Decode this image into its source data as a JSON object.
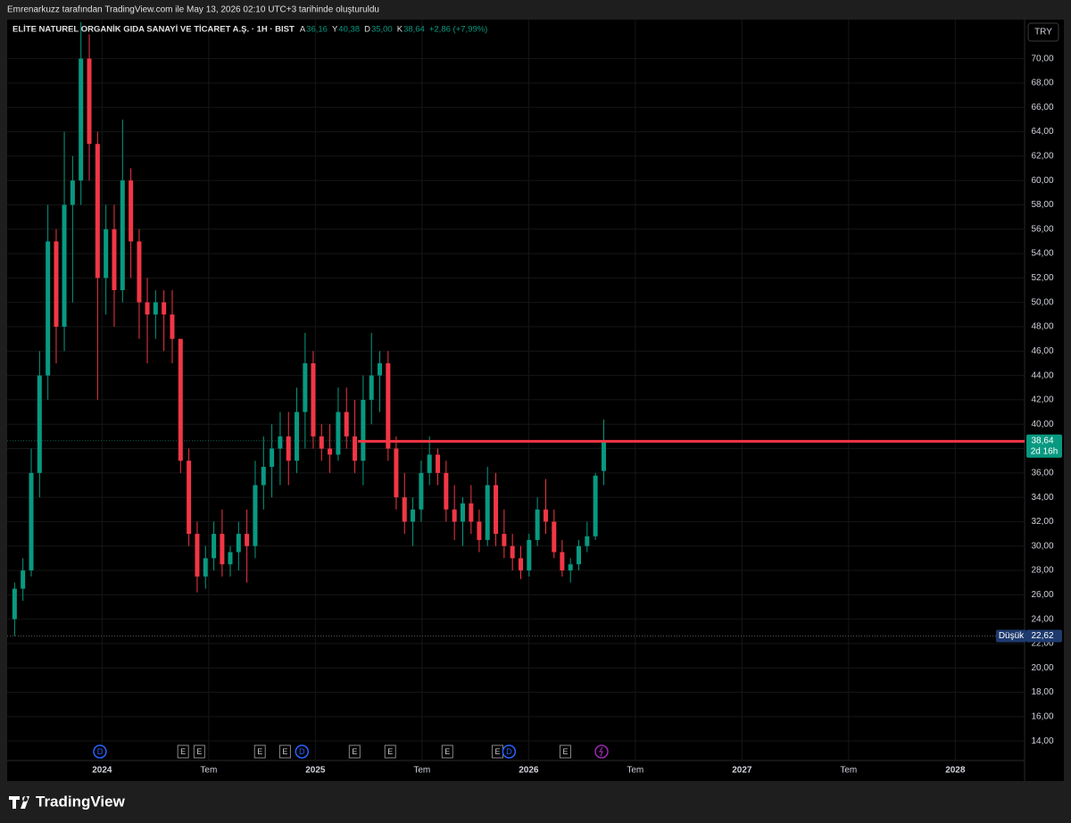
{
  "chart_data": {
    "type": "candlestick",
    "caption": "Emrenarkuzz tarafından TradingView.com ile May 13, 2026 02:10 UTC+3 tarihinde oluşturuldu",
    "title": "ELİTE NATUREL ORGANİK GIDA SANAYİ VE TİCARET A.Ş. · 1H · BIST",
    "legend": [
      {
        "key": "A",
        "text": "36,16"
      },
      {
        "key": "Y",
        "text": "40,38"
      },
      {
        "key": "D",
        "text": "35,00"
      },
      {
        "key": "K",
        "text": "38,64"
      }
    ],
    "change": "+2,86 (+7,99%)",
    "currency": "TRY",
    "brand": "TradingView",
    "up_color": "#089981",
    "down_color": "#f23645",
    "x": [
      2023.59,
      2023.629,
      2023.668,
      2023.707,
      2023.746,
      2023.785,
      2023.823,
      2023.862,
      2023.901,
      2023.94,
      2023.979,
      2024.018,
      2024.057,
      2024.096,
      2024.135,
      2024.174,
      2024.212,
      2024.251,
      2024.29,
      2024.329,
      2024.368,
      2024.407,
      2024.446,
      2024.485,
      2024.524,
      2024.563,
      2024.601,
      2024.64,
      2024.679,
      2024.718,
      2024.757,
      2024.796,
      2024.835,
      2024.874,
      2024.913,
      2024.952,
      2024.99,
      2025.029,
      2025.068,
      2025.107,
      2025.146,
      2025.185,
      2025.224,
      2025.263,
      2025.302,
      2025.341,
      2025.379,
      2025.418,
      2025.457,
      2025.496,
      2025.535,
      2025.574,
      2025.613,
      2025.652,
      2025.691,
      2025.73,
      2025.768,
      2025.807,
      2025.846,
      2025.885,
      2025.924,
      2025.963,
      2026.002,
      2026.041,
      2026.08,
      2026.119,
      2026.157,
      2026.196,
      2026.235,
      2026.274,
      2026.313,
      2026.352
    ],
    "open": [
      24,
      26.5,
      28,
      36,
      44,
      55,
      48,
      58,
      60,
      70,
      63,
      52,
      56,
      51,
      60,
      55,
      50,
      49,
      50,
      49,
      47,
      37,
      31,
      27.5,
      29,
      31,
      28.5,
      29.5,
      31,
      30,
      35,
      36.5,
      38,
      39,
      37,
      41,
      45,
      39,
      38,
      37.5,
      41,
      39,
      37,
      42,
      44,
      45,
      38,
      34,
      32,
      33,
      36,
      37.5,
      36,
      33,
      32,
      33.5,
      32,
      30.5,
      35,
      31,
      30,
      29,
      28,
      30.5,
      33,
      32,
      29.5,
      28,
      28.5,
      30,
      30.8,
      36.16
    ],
    "high": [
      27,
      29,
      38,
      46,
      58,
      56,
      64,
      62,
      73,
      72,
      64,
      58,
      58,
      65,
      61,
      56,
      52,
      51,
      51,
      51,
      47,
      38,
      32,
      30,
      32,
      33,
      30,
      32,
      33,
      37,
      39,
      40,
      41,
      41,
      43,
      47.5,
      46,
      40,
      40,
      43,
      43,
      42,
      44,
      47.5,
      46,
      46,
      39,
      36,
      34,
      37,
      39,
      38,
      37,
      35,
      34,
      35,
      33,
      36.5,
      36,
      33,
      31,
      30,
      31,
      34,
      35.5,
      33,
      30.5,
      29,
      30.5,
      32,
      36,
      40.38
    ],
    "low": [
      22.62,
      25.5,
      27.5,
      34,
      42,
      45,
      46,
      50,
      58,
      60,
      42,
      49,
      48,
      50,
      52,
      47,
      45,
      47,
      46,
      45,
      36,
      30,
      26.2,
      26.5,
      28,
      27.5,
      27.5,
      28,
      27,
      29,
      33,
      34,
      35,
      35,
      36,
      38,
      38,
      37,
      36,
      37,
      38,
      36,
      35,
      40,
      41,
      37,
      33,
      31,
      30,
      32,
      35,
      35,
      32,
      30.5,
      30,
      31,
      29.5,
      30,
      30,
      29,
      28,
      27.3,
      27.5,
      30,
      31,
      29,
      27.5,
      27,
      28,
      29.5,
      30.5,
      35
    ],
    "close": [
      26.5,
      28,
      36,
      44,
      55,
      48,
      58,
      60,
      70,
      63,
      52,
      56,
      51,
      60,
      55,
      50,
      49,
      50,
      49,
      47,
      37,
      31,
      27.5,
      29,
      31,
      28.5,
      29.5,
      31,
      30,
      35,
      36.5,
      38,
      39,
      37,
      41,
      45,
      39,
      38,
      37.5,
      41,
      39,
      37,
      42,
      44,
      45,
      38,
      34,
      32,
      33,
      36,
      37.5,
      36,
      33,
      32,
      33.5,
      32,
      30.5,
      35,
      31,
      30,
      29,
      28,
      30.5,
      33,
      32,
      29.5,
      28,
      28.5,
      30,
      30.8,
      35.78,
      38.64
    ],
    "last_price_label": "38,64",
    "countdown": "2d 16h",
    "low_marker": {
      "label": "Düşük",
      "value": 22.62,
      "value_label": "22,62"
    },
    "hline": {
      "value": 38.6,
      "x_start": 2025.2,
      "color": "#f23645"
    },
    "events": [
      {
        "x": 2023.99,
        "label": "D"
      },
      {
        "x": 2024.38,
        "label": "E"
      },
      {
        "x": 2024.456,
        "label": "E"
      },
      {
        "x": 2024.74,
        "label": "E"
      },
      {
        "x": 2024.858,
        "label": "E"
      },
      {
        "x": 2024.937,
        "label": "D"
      },
      {
        "x": 2025.184,
        "label": "E"
      },
      {
        "x": 2025.351,
        "label": "E"
      },
      {
        "x": 2025.619,
        "label": "E"
      },
      {
        "x": 2025.854,
        "label": "E"
      },
      {
        "x": 2025.908,
        "label": "D"
      },
      {
        "x": 2026.172,
        "label": "E"
      }
    ],
    "xlim": [
      2023.555,
      2028.325
    ],
    "xticks": [
      {
        "value": 2024,
        "label": "2024"
      },
      {
        "value": 2024.5,
        "label": "Tem"
      },
      {
        "value": 2025,
        "label": "2025"
      },
      {
        "value": 2025.5,
        "label": "Tem"
      },
      {
        "value": 2026,
        "label": "2026"
      },
      {
        "value": 2026.5,
        "label": "Tem"
      },
      {
        "value": 2027,
        "label": "2027"
      },
      {
        "value": 2027.5,
        "label": "Tem"
      },
      {
        "value": 2028,
        "label": "2028"
      }
    ],
    "ylim": [
      12.4,
      73.2
    ],
    "yticks": [
      {
        "value": 14,
        "label": "14,00"
      },
      {
        "value": 16,
        "label": "16,00"
      },
      {
        "value": 18,
        "label": "18,00"
      },
      {
        "value": 20,
        "label": "20,00"
      },
      {
        "value": 22,
        "label": "22,00"
      },
      {
        "value": 24,
        "label": "24,00"
      },
      {
        "value": 26,
        "label": "26,00"
      },
      {
        "value": 28,
        "label": "28,00"
      },
      {
        "value": 30,
        "label": "30,00"
      },
      {
        "value": 32,
        "label": "32,00"
      },
      {
        "value": 34,
        "label": "34,00"
      },
      {
        "value": 36,
        "label": "36,00"
      },
      {
        "value": 38,
        "label": "38,00"
      },
      {
        "value": 40,
        "label": "40,00"
      },
      {
        "value": 42,
        "label": "42,00"
      },
      {
        "value": 44,
        "label": "44,00"
      },
      {
        "value": 46,
        "label": "46,00"
      },
      {
        "value": 48,
        "label": "48,00"
      },
      {
        "value": 50,
        "label": "50,00"
      },
      {
        "value": 52,
        "label": "52,00"
      },
      {
        "value": 54,
        "label": "54,00"
      },
      {
        "value": 56,
        "label": "56,00"
      },
      {
        "value": 58,
        "label": "58,00"
      },
      {
        "value": 60,
        "label": "60,00"
      },
      {
        "value": 62,
        "label": "62,00"
      },
      {
        "value": 64,
        "label": "64,00"
      },
      {
        "value": 66,
        "label": "66,00"
      },
      {
        "value": 68,
        "label": "68,00"
      },
      {
        "value": 70,
        "label": "70,00"
      }
    ],
    "grid": true
  }
}
